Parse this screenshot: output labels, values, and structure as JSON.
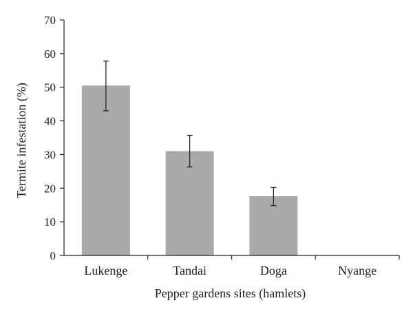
{
  "chart_data": {
    "type": "bar",
    "title": "",
    "xlabel": "Pepper gardens sites (hamlets)",
    "ylabel": "Termite infestation (%)",
    "categories": [
      "Lukenge",
      "Tandai",
      "Doga",
      "Nyange"
    ],
    "values": [
      50.5,
      31.0,
      17.6,
      0
    ],
    "error_low": [
      43.0,
      26.3,
      14.8,
      null
    ],
    "error_high": [
      57.8,
      35.7,
      20.2,
      null
    ],
    "ylim": [
      0,
      70
    ],
    "yticks": [
      "0",
      "10",
      "20",
      "30",
      "40",
      "50",
      "60",
      "70"
    ],
    "grid": false,
    "bar_color": "#aaaaaa"
  }
}
